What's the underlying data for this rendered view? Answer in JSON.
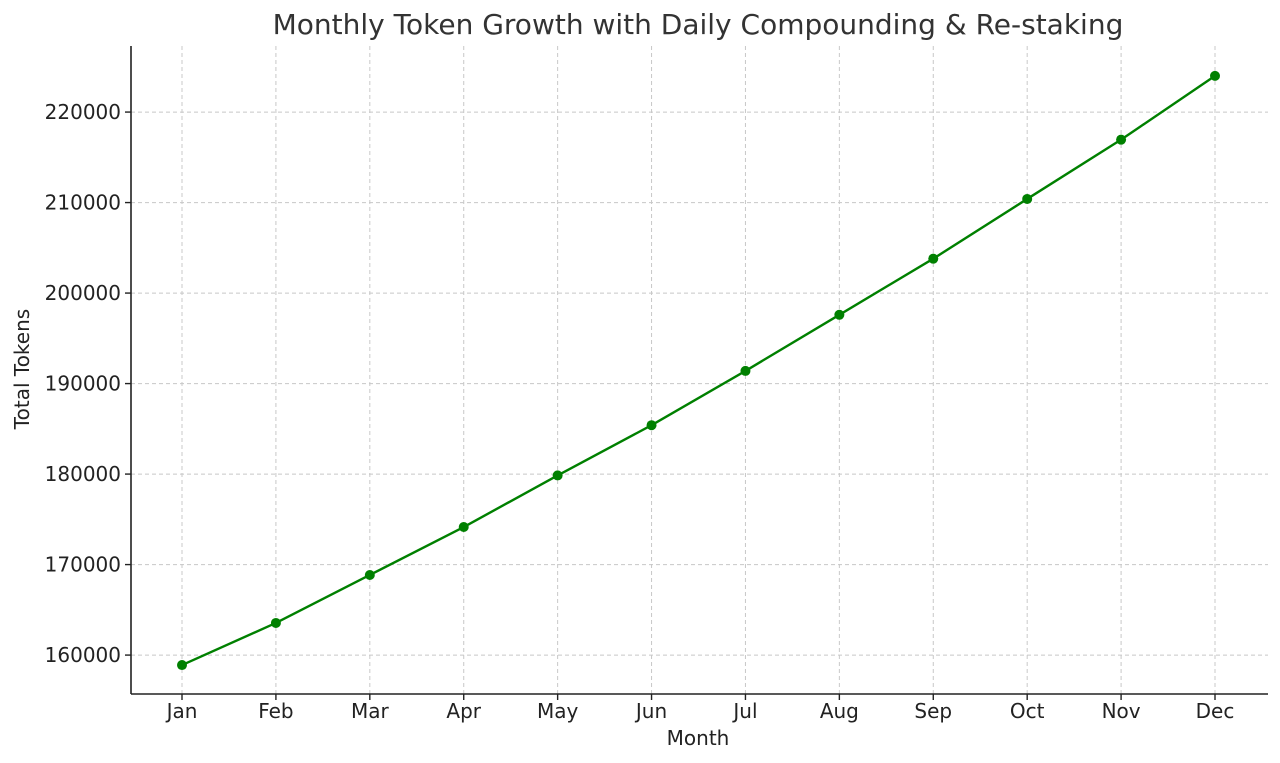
{
  "chart_data": {
    "type": "line",
    "title": "Monthly Token Growth with Daily Compounding & Re-staking",
    "xlabel": "Month",
    "ylabel": "Total Tokens",
    "categories": [
      "Jan",
      "Feb",
      "Mar",
      "Apr",
      "May",
      "Jun",
      "Jul",
      "Aug",
      "Sep",
      "Oct",
      "Nov",
      "Dec"
    ],
    "series": [
      {
        "values": [
          158900,
          163550,
          168850,
          174150,
          179850,
          185400,
          191400,
          197600,
          203800,
          210400,
          216950,
          224000
        ]
      }
    ],
    "y_ticks": [
      160000,
      170000,
      180000,
      190000,
      200000,
      210000,
      220000
    ],
    "ylim": [
      155700,
      227300
    ],
    "grid": true,
    "markers": true,
    "colors": {
      "line": "#008000"
    }
  }
}
